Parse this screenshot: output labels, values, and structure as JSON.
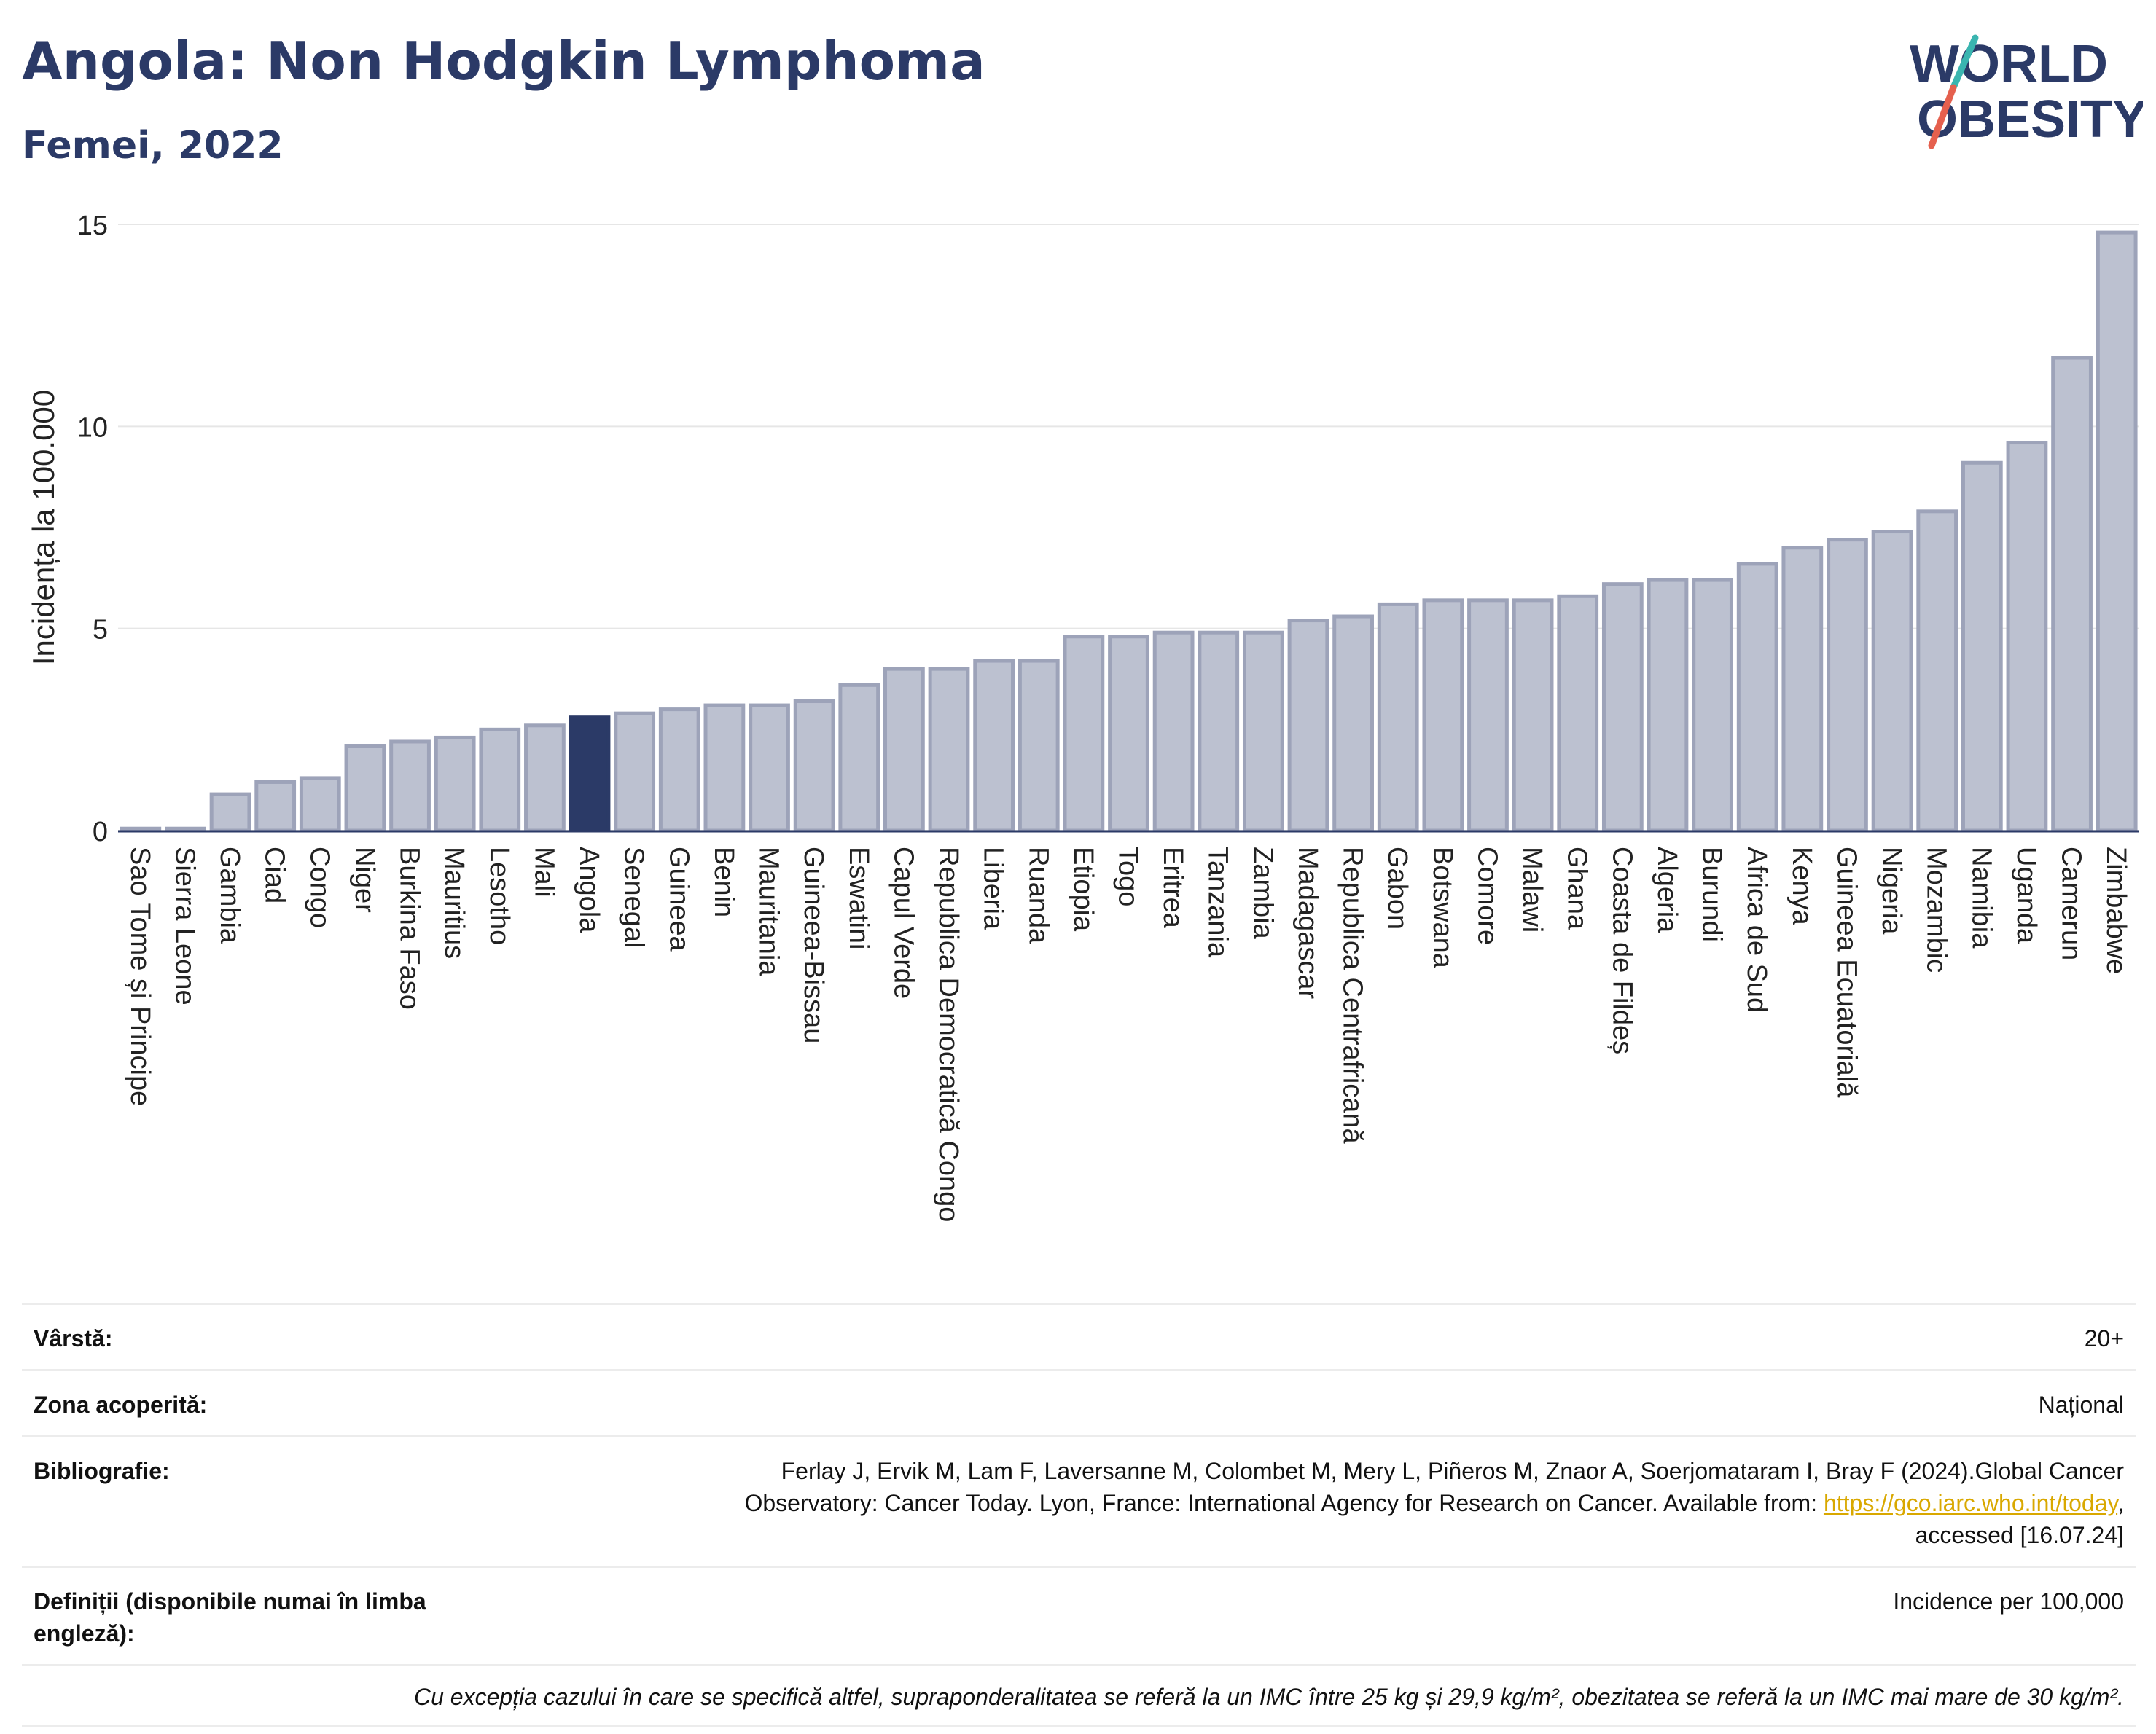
{
  "header": {
    "title": "Angola: Non Hodgkin Lymphoma",
    "subtitle": "Femei, 2022"
  },
  "logo": {
    "line1": "WORLD",
    "line2": "OBESITY"
  },
  "colors": {
    "accent": "#2b3a67",
    "bar": "#bcc1d0",
    "bar_stroke": "#9da3b9",
    "logo_teal": "#3ab5b0",
    "logo_red": "#e5604e"
  },
  "chart_data": {
    "type": "bar",
    "ylabel": "Incidența la 100.000",
    "ylim": [
      0,
      15
    ],
    "yticks": [
      0,
      5,
      10,
      15
    ],
    "highlight": "Angola",
    "grid": true,
    "categories": [
      "Sao Tome și Principe",
      "Sierra Leone",
      "Gambia",
      "Ciad",
      "Congo",
      "Niger",
      "Burkina Faso",
      "Mauritius",
      "Lesotho",
      "Mali",
      "Angola",
      "Senegal",
      "Guineea",
      "Benin",
      "Mauritania",
      "Guineea-Bissau",
      "Eswatini",
      "Capul Verde",
      "Republica Democratică Congo",
      "Liberia",
      "Ruanda",
      "Etiopia",
      "Togo",
      "Eritrea",
      "Tanzania",
      "Zambia",
      "Madagascar",
      "Republica Centrafricană",
      "Gabon",
      "Botswana",
      "Comore",
      "Malawi",
      "Ghana",
      "Coasta de Fildeș",
      "Algeria",
      "Burundi",
      "Africa de Sud",
      "Kenya",
      "Guineea Ecuatorială",
      "Nigeria",
      "Mozambic",
      "Namibia",
      "Uganda",
      "Camerun",
      "Zimbabwe"
    ],
    "values": [
      0.05,
      0.05,
      0.9,
      1.2,
      1.3,
      2.1,
      2.2,
      2.3,
      2.5,
      2.6,
      2.8,
      2.9,
      3.0,
      3.1,
      3.1,
      3.2,
      3.6,
      4.0,
      4.0,
      4.2,
      4.2,
      4.8,
      4.8,
      4.9,
      4.9,
      4.9,
      5.2,
      5.3,
      5.6,
      5.7,
      5.7,
      5.7,
      5.8,
      6.1,
      6.2,
      6.2,
      6.6,
      7.0,
      7.2,
      7.4,
      7.9,
      9.1,
      9.6,
      11.7,
      14.8
    ]
  },
  "meta": {
    "age_label": "Vârstă:",
    "age_value": "20+",
    "area_label": "Zona acoperită:",
    "area_value": "Național",
    "bib_label": "Bibliografie:",
    "bib_text_1": "Ferlay J, Ervik M, Lam F, Laversanne M, Colombet M, Mery L, Piñeros M, Znaor A, Soerjomataram I, Bray F (2024).Global Cancer",
    "bib_text_2": "Observatory: Cancer Today. Lyon, France: International Agency for Research on Cancer. Available from: ",
    "bib_link": "https://gco.iarc.who.int/today",
    "bib_text_3": ",",
    "bib_text_4": "accessed [16.07.24]",
    "def_label": "Definiții (disponibile numai în limba engleză):",
    "def_value": "Incidence per 100,000",
    "note": "Cu excepția cazului în care se specifică altfel, supraponderalitatea se referă la un IMC între 25 kg și 29,9 kg/m², obezitatea se referă la un IMC mai mare de 30 kg/m²."
  }
}
